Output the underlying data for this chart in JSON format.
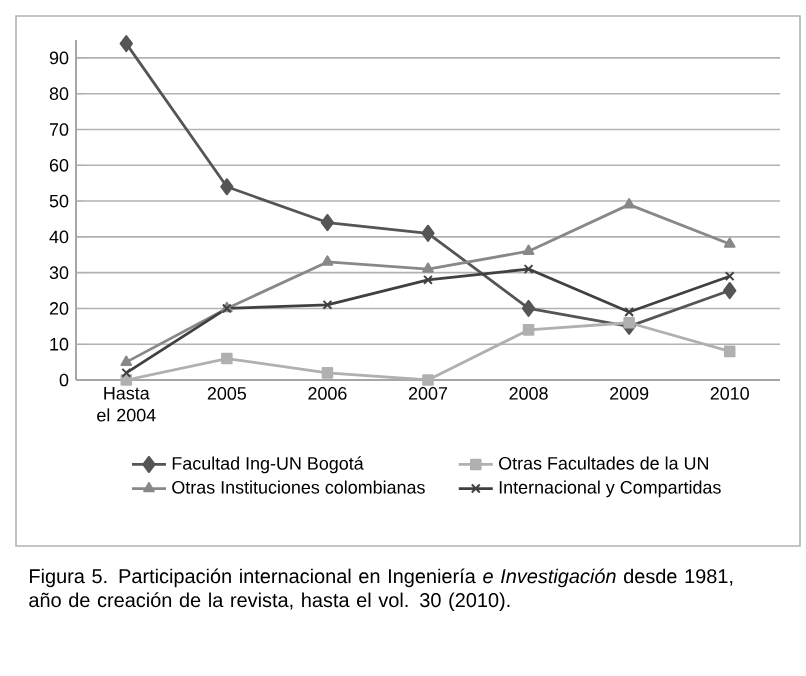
{
  "chart_data": {
    "type": "line",
    "categories": [
      "Hasta el 2004",
      "2005",
      "2006",
      "2007",
      "2008",
      "2009",
      "2010"
    ],
    "series": [
      {
        "name": "Facultad Ing-UN Bogotá",
        "color": "#555555",
        "marker": "diamond",
        "values": [
          94,
          54,
          44,
          41,
          20,
          15,
          25
        ]
      },
      {
        "name": "Otras Facultades de la UN",
        "color": "#b0b0b0",
        "marker": "square",
        "values": [
          0,
          6,
          2,
          0,
          14,
          16,
          8
        ]
      },
      {
        "name": "Otras Instituciones colombianas",
        "color": "#888888",
        "marker": "triangle",
        "values": [
          5,
          20,
          33,
          31,
          36,
          49,
          38
        ]
      },
      {
        "name": "Internacional y Compartidas",
        "color": "#404040",
        "marker": "cross",
        "values": [
          2,
          20,
          21,
          28,
          31,
          19,
          29
        ]
      }
    ],
    "ylim": [
      0,
      95
    ],
    "yticks": [
      0,
      10,
      20,
      30,
      40,
      50,
      60,
      70,
      80,
      90
    ],
    "grid": "y",
    "legend": "bottom",
    "line_style": "solid",
    "annotations": [
      "Figura 5. Participación internacional en Ingeniería *e Investigación* desde 1981, año de creación de la revista, hasta el vol. 30 (2010)."
    ]
  }
}
